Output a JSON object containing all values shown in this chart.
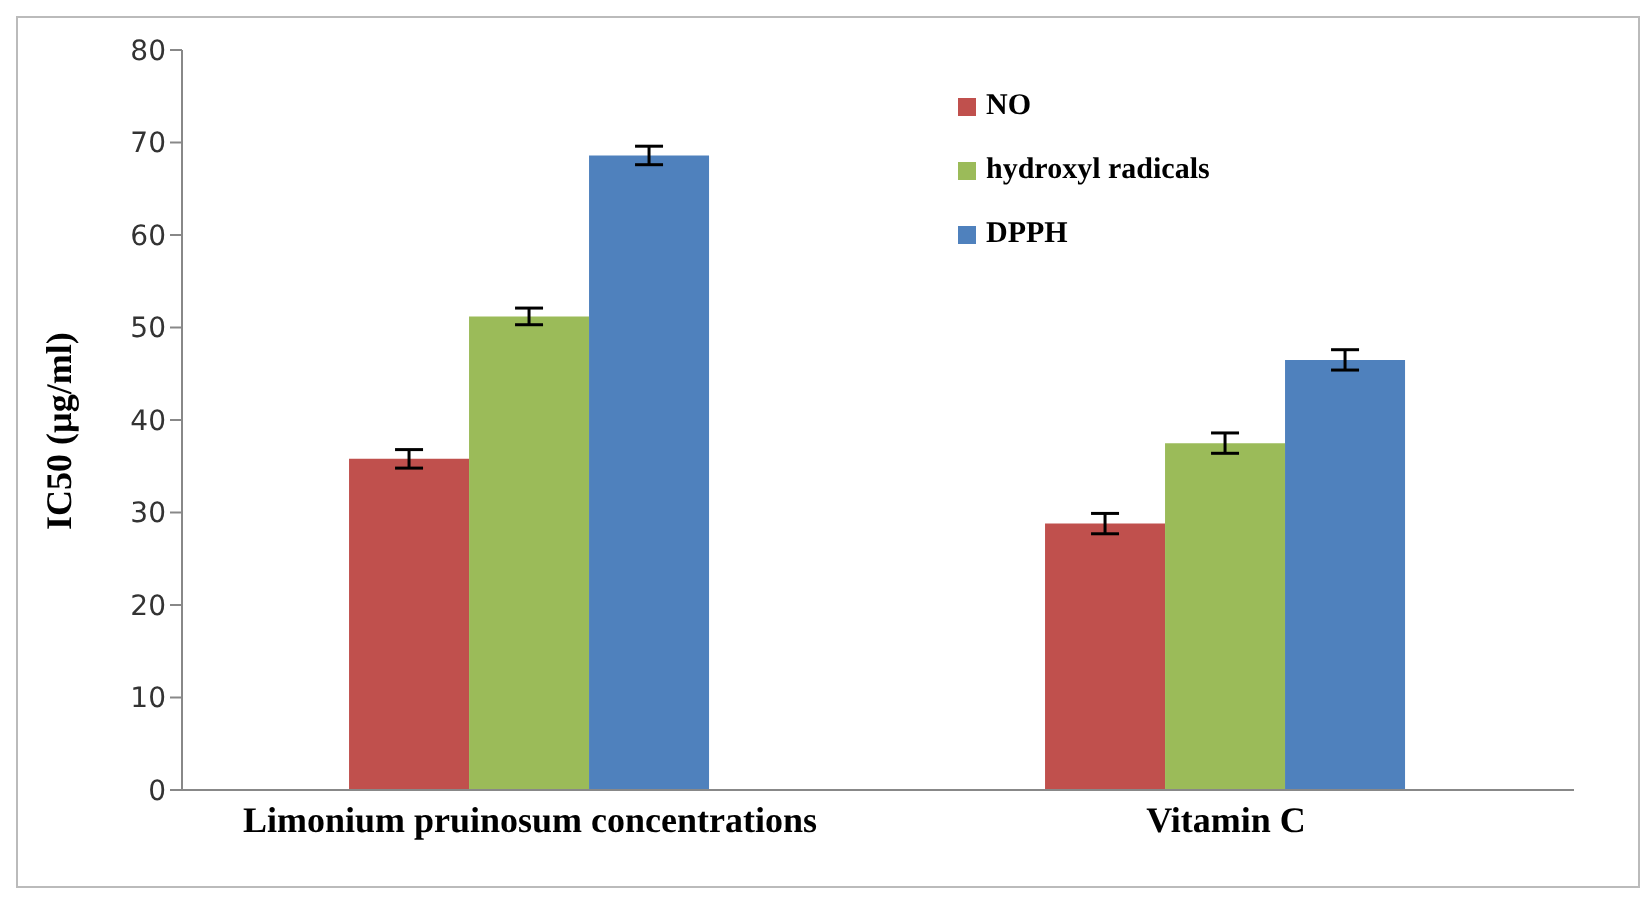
{
  "chart_data": {
    "type": "bar",
    "ylabel": "IC50 (µg/ml)",
    "categories": [
      "Limonium pruinosum concentrations",
      "Vitamin C"
    ],
    "series": [
      {
        "name": "NO",
        "color": "#c0504d",
        "values": [
          35.8,
          28.8
        ],
        "errors": [
          1,
          1.1
        ]
      },
      {
        "name": "hydroxyl radicals",
        "color": "#9bbb59",
        "values": [
          51.2,
          37.5
        ],
        "errors": [
          0.9,
          1.1
        ]
      },
      {
        "name": "DPPH",
        "color": "#4f81bd",
        "values": [
          68.6,
          46.5
        ],
        "errors": [
          1,
          1.1
        ]
      }
    ],
    "ylim": [
      0,
      80
    ],
    "yticks": [
      0,
      10,
      20,
      30,
      40,
      50,
      60,
      70,
      80
    ],
    "grid": false,
    "legend": "top right"
  }
}
